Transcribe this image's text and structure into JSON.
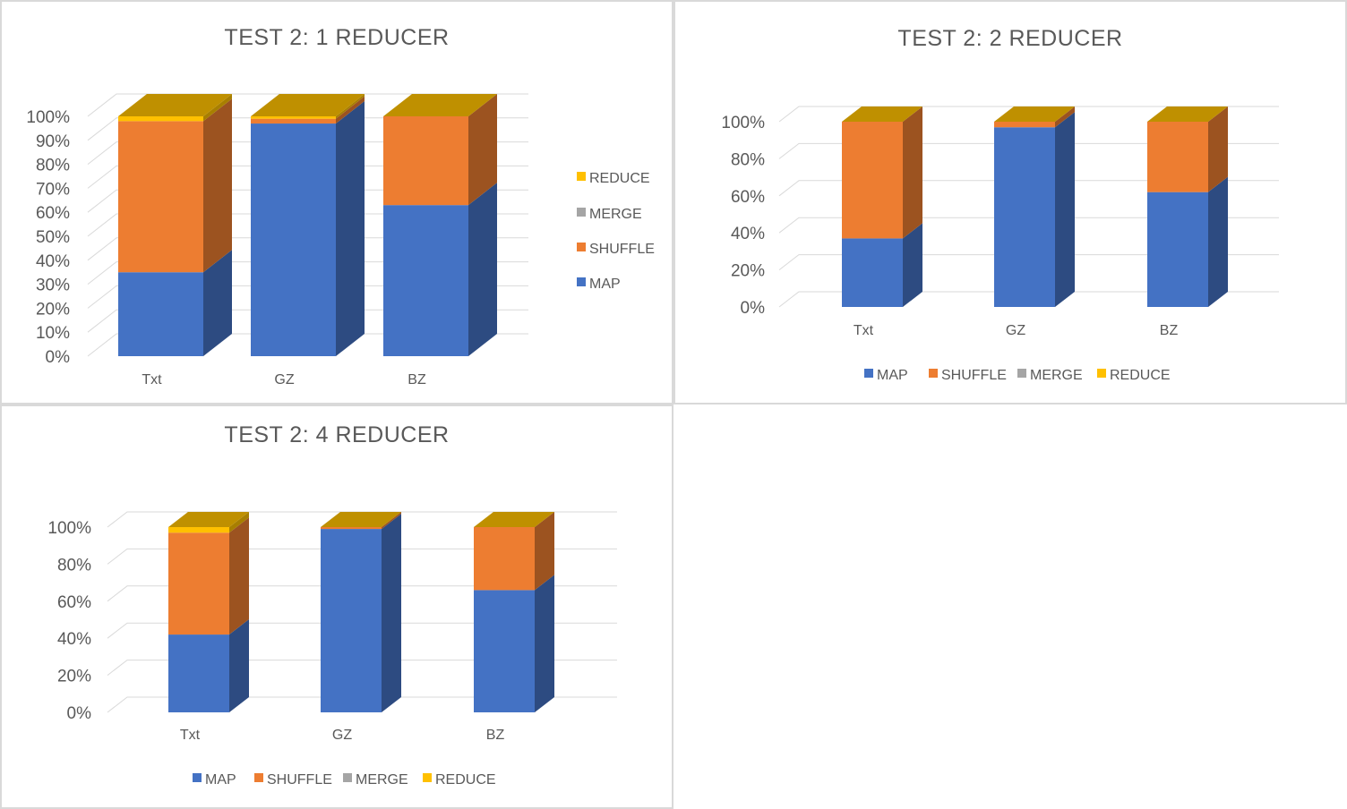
{
  "colors": {
    "MAP": "#4472c4",
    "SHUFFLE": "#ed7d31",
    "MERGE": "#a5a5a5",
    "REDUCE": "#ffc000"
  },
  "chart_data": [
    {
      "type": "bar",
      "stacked": "percent",
      "title": "TEST 2: 1 REDUCER",
      "categories": [
        "Txt",
        "GZ",
        "BZ"
      ],
      "y_ticks": [
        "0%",
        "10%",
        "20%",
        "30%",
        "40%",
        "50%",
        "60%",
        "70%",
        "80%",
        "90%",
        "100%"
      ],
      "ylim": [
        0,
        100
      ],
      "legend_position": "right",
      "legend_order": [
        "REDUCE",
        "MERGE",
        "SHUFFLE",
        "MAP"
      ],
      "series": [
        {
          "name": "MAP",
          "values": [
            35,
            97,
            63
          ]
        },
        {
          "name": "SHUFFLE",
          "values": [
            63,
            2,
            37
          ]
        },
        {
          "name": "MERGE",
          "values": [
            0,
            0,
            0
          ]
        },
        {
          "name": "REDUCE",
          "values": [
            2,
            1,
            0
          ]
        }
      ]
    },
    {
      "type": "bar",
      "stacked": "percent",
      "title": "TEST 2: 2 REDUCER",
      "categories": [
        "Txt",
        "GZ",
        "BZ"
      ],
      "y_ticks": [
        "0%",
        "20%",
        "40%",
        "60%",
        "80%",
        "100%"
      ],
      "ylim": [
        0,
        100
      ],
      "legend_position": "bottom",
      "legend_order": [
        "MAP",
        "SHUFFLE",
        "MERGE",
        "REDUCE"
      ],
      "series": [
        {
          "name": "MAP",
          "values": [
            37,
            97,
            62
          ]
        },
        {
          "name": "SHUFFLE",
          "values": [
            63,
            3,
            38
          ]
        },
        {
          "name": "MERGE",
          "values": [
            0,
            0,
            0
          ]
        },
        {
          "name": "REDUCE",
          "values": [
            0,
            0,
            0
          ]
        }
      ]
    },
    {
      "type": "bar",
      "stacked": "percent",
      "title": "TEST 2: 4 REDUCER",
      "categories": [
        "Txt",
        "GZ",
        "BZ"
      ],
      "y_ticks": [
        "0%",
        "20%",
        "40%",
        "60%",
        "80%",
        "100%"
      ],
      "ylim": [
        0,
        100
      ],
      "legend_position": "bottom",
      "legend_order": [
        "MAP",
        "SHUFFLE",
        "MERGE",
        "REDUCE"
      ],
      "series": [
        {
          "name": "MAP",
          "values": [
            42,
            99,
            66
          ]
        },
        {
          "name": "SHUFFLE",
          "values": [
            55,
            1,
            34
          ]
        },
        {
          "name": "MERGE",
          "values": [
            0,
            0,
            0
          ]
        },
        {
          "name": "REDUCE",
          "values": [
            3,
            0,
            0
          ]
        }
      ]
    }
  ]
}
